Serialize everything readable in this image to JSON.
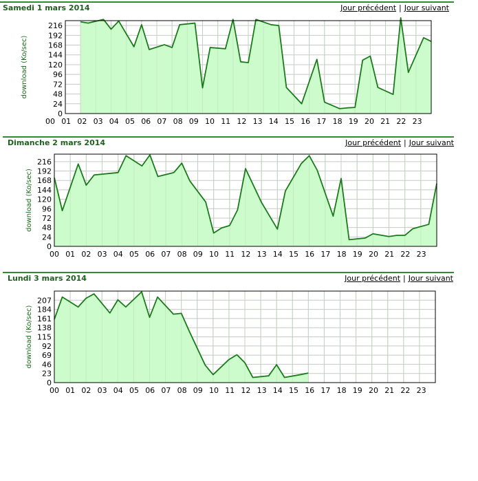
{
  "nav": {
    "prev": "Jour précédent",
    "next": "Jour suivant",
    "separator": "|"
  },
  "chart_data": [
    {
      "type": "area",
      "title": "Samedi 1 mars 2014",
      "xlabel": "",
      "ylabel": "download (Ko/sec)",
      "ylim": [
        0,
        228
      ],
      "yticks": [
        0,
        24,
        48,
        72,
        96,
        120,
        144,
        168,
        192,
        216
      ],
      "xlim": [
        0,
        24
      ],
      "xticks": [
        "00",
        "01",
        "02",
        "03",
        "04",
        "05",
        "06",
        "07",
        "08",
        "09",
        "10",
        "11",
        "12",
        "13",
        "14",
        "15",
        "16",
        "17",
        "18",
        "19",
        "20",
        "21",
        "22",
        "23"
      ],
      "grid": true,
      "color": "#1a7a1a",
      "fill": "#ccfccc",
      "x": [
        1,
        1.5,
        2.5,
        3,
        3.5,
        4.5,
        5,
        5.5,
        6.5,
        7,
        7.5,
        8.5,
        9,
        9.5,
        10.5,
        11,
        11.5,
        12,
        12.5,
        13.5,
        14,
        14.5,
        15.5,
        16.5,
        17,
        18,
        18.5,
        19,
        19.5,
        20,
        20.5,
        21.5,
        22,
        22.5,
        23.5,
        24
      ],
      "y": [
        225,
        222,
        231,
        207,
        227,
        164,
        218,
        157,
        169,
        162,
        218,
        222,
        63,
        162,
        159,
        231,
        127,
        125,
        231,
        218,
        216,
        64,
        24,
        133,
        28,
        12,
        14,
        15,
        131,
        141,
        64,
        47,
        235,
        101,
        186,
        177
      ]
    },
    {
      "type": "area",
      "title": "Dimanche 2 mars 2014",
      "xlabel": "",
      "ylabel": "download (Ko/sec)",
      "ylim": [
        0,
        235
      ],
      "yticks": [
        0,
        24,
        48,
        72,
        96,
        120,
        144,
        168,
        192,
        216
      ],
      "xlim": [
        0,
        24
      ],
      "xticks": [
        "00",
        "01",
        "02",
        "03",
        "04",
        "05",
        "06",
        "07",
        "08",
        "09",
        "10",
        "11",
        "12",
        "13",
        "14",
        "15",
        "16",
        "17",
        "18",
        "19",
        "20",
        "21",
        "22",
        "23"
      ],
      "grid": true,
      "color": "#1a7a1a",
      "fill": "#ccfccc",
      "x": [
        0,
        0.5,
        1.5,
        2,
        2.5,
        3.5,
        4,
        4.5,
        5.5,
        6,
        6.5,
        7.5,
        8,
        8.5,
        9.5,
        10,
        10.5,
        11,
        11.5,
        12,
        13,
        14,
        14.5,
        15.5,
        16,
        16.5,
        17.5,
        18,
        18.5,
        19.5,
        20,
        21,
        21.5,
        22,
        22.5,
        23.5,
        24
      ],
      "y": [
        175,
        91,
        210,
        156,
        182,
        186,
        188,
        231,
        205,
        233,
        178,
        188,
        212,
        167,
        113,
        34,
        47,
        53,
        93,
        198,
        112,
        44,
        141,
        211,
        231,
        194,
        77,
        173,
        17,
        21,
        32,
        25,
        28,
        28,
        45,
        56,
        160
      ]
    },
    {
      "type": "area",
      "title": "Lundi 3 mars 2014",
      "xlabel": "",
      "ylabel": "download (Ko/sec)",
      "ylim": [
        0,
        230
      ],
      "yticks": [
        0,
        23,
        46,
        69,
        92,
        115,
        138,
        161,
        184,
        207
      ],
      "xlim": [
        0,
        24
      ],
      "xticks": [
        "00",
        "01",
        "02",
        "03",
        "04",
        "05",
        "06",
        "07",
        "08",
        "09",
        "10",
        "11",
        "12",
        "13",
        "14",
        "15",
        "16",
        "17",
        "18",
        "19",
        "20",
        "21",
        "22",
        "23"
      ],
      "grid": true,
      "color": "#1a7a1a",
      "fill": "#ccfccc",
      "x": [
        0,
        0.5,
        1.5,
        2,
        2.5,
        3.5,
        4,
        4.5,
        5.5,
        6,
        6.5,
        7.5,
        8,
        8.5,
        9.5,
        10,
        11,
        11.5,
        12,
        12.5,
        13.5,
        14,
        14.5,
        15.5,
        16
      ],
      "y": [
        159,
        215,
        190,
        212,
        223,
        175,
        208,
        190,
        228,
        164,
        215,
        172,
        174,
        129,
        44,
        20,
        58,
        70,
        50,
        13,
        17,
        45,
        13,
        20,
        24
      ]
    }
  ]
}
